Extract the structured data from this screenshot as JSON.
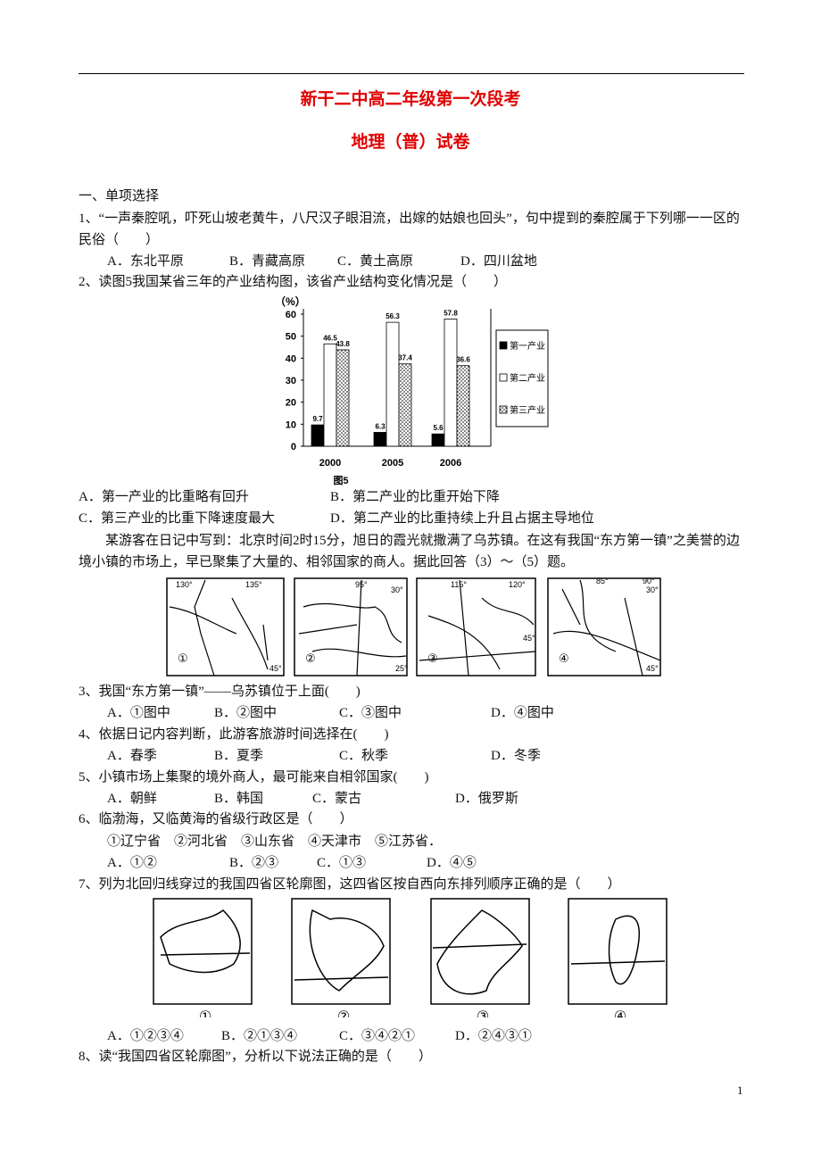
{
  "document": {
    "header": {
      "title": "新干二中高二年级第一次段考",
      "subtitle": "地理（普）试卷"
    },
    "section": "一、单项选择",
    "questions": [
      {
        "stem": "1、“一声秦腔吼，吓死山坡老黄牛，八尺汉子眼泪流，出嫁的姑娘也回头”，句中提到的秦腔属于下列哪一一区的民俗（　　）",
        "options": [
          "A．东北平原",
          "B．青藏高原",
          "C．黄土高原",
          "D．四川盆地"
        ]
      },
      {
        "stem": "2、读图5我国某省三年的产业结构图，该省产业结构变化情况是（　　）",
        "options": [
          "A．第一产业的比重略有回升",
          "B．第二产业的比重开始下降",
          "C．第三产业的比重下降速度最大",
          "D．第二产业的比重持续上升且占据主导地位"
        ]
      },
      {
        "stem": "3、我国“东方第一镇”——乌苏镇位于上面(　　)",
        "options": [
          "A．①图中",
          "B．②图中",
          "C．③图中",
          "D．④图中"
        ]
      },
      {
        "stem": "4、依据日记内容判断，此游客旅游时间选择在(　　)",
        "options": [
          "A．春季",
          "B．夏季",
          "C．秋季",
          "D．冬季"
        ]
      },
      {
        "stem": "5、小镇市场上集聚的境外商人，最可能来自相邻国家(　　)",
        "options": [
          "A．朝鲜",
          "B．韩国",
          "C．蒙古",
          "D．俄罗斯"
        ]
      },
      {
        "stem": "6、临渤海，又临黄海的省级行政区是（　　）",
        "choices": "①辽宁省　②河北省　③山东省　④天津市　⑤江苏省．",
        "options": [
          "A．①②",
          "B．②③",
          "C．①③",
          "D．④⑤"
        ]
      },
      {
        "stem": "7、列为北回归线穿过的我国四省区轮廓图，这四省区按自西向东排列顺序正确的是（　　）",
        "options": [
          "A．①②③④",
          "B．②①③④",
          "C．③④②①",
          "D．②④③①"
        ]
      },
      {
        "stem": "8、读“我国四省区轮廓图”，分析以下说法正确的是（　　）"
      }
    ],
    "passage": "某游客在日记中写到：北京时间2时15分，旭日的霞光就撒满了乌苏镇。在这有我国“东方第一镇”之美誉的边境小镇的市场上，早已聚集了大量的、相邻国家的商人。据此回答（3）～（5）题。",
    "maps": [
      {
        "label": "①",
        "coords": [
          "130°",
          "135°",
          "45°"
        ]
      },
      {
        "label": "②",
        "coords": [
          "95°",
          "30°",
          "25°"
        ]
      },
      {
        "label": "③",
        "coords": [
          "115°",
          "120°",
          "45°"
        ]
      },
      {
        "label": "④",
        "coords": [
          "85°",
          "90°",
          "30°",
          "45°"
        ]
      }
    ],
    "province_maps": [
      "①",
      "②",
      "③",
      "④"
    ],
    "page_number": "1"
  },
  "chart_data": {
    "type": "bar",
    "ylabel": "（%）",
    "caption": "图5",
    "categories": [
      "2000",
      "2005",
      "2006"
    ],
    "series": [
      {
        "name": "第一产业",
        "color": "#000000",
        "values": [
          9.7,
          6.3,
          5.6
        ]
      },
      {
        "name": "第二产业",
        "color": "#ffffff",
        "values": [
          46.5,
          56.3,
          57.8
        ]
      },
      {
        "name": "第三产业",
        "color": "#ffffff",
        "pattern": "dots",
        "values": [
          43.8,
          37.4,
          36.6
        ]
      }
    ],
    "ylim": [
      0,
      60
    ],
    "yticks": [
      0,
      10,
      20,
      30,
      40,
      50,
      60
    ]
  }
}
